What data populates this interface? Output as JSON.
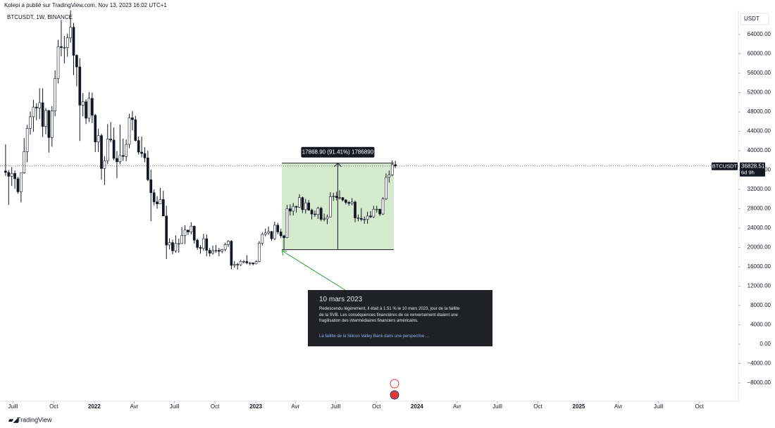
{
  "header": {
    "publisher": "Kolepi a publié sur TradingView.com, Nov 13, 2023 16:02 UTC+1"
  },
  "chart_data": {
    "type": "candlestick",
    "title": "BTCUSDT, 1W, BINANCE",
    "currency": "USDT",
    "up_color": "#ffffff",
    "down_color": "#131722",
    "outline_color": "#131722",
    "candles": [
      [
        35800,
        41300,
        34800,
        35500
      ],
      [
        35500,
        36000,
        28800,
        34700
      ],
      [
        34700,
        36600,
        32700,
        35300
      ],
      [
        35300,
        35900,
        32100,
        34200
      ],
      [
        34200,
        34600,
        31100,
        31500
      ],
      [
        31500,
        35400,
        29300,
        35400
      ],
      [
        35400,
        42600,
        35200,
        39800
      ],
      [
        39800,
        45300,
        37600,
        44600
      ],
      [
        44600,
        48100,
        43300,
        47000
      ],
      [
        47000,
        50500,
        43900,
        49000
      ],
      [
        49000,
        49800,
        46300,
        48800
      ],
      [
        48800,
        52900,
        46500,
        49900
      ],
      [
        49900,
        52900,
        42800,
        45000
      ],
      [
        45000,
        48800,
        43400,
        48300
      ],
      [
        48300,
        48400,
        39600,
        42700
      ],
      [
        42700,
        49200,
        40800,
        48200
      ],
      [
        48200,
        56600,
        47100,
        54900
      ],
      [
        54900,
        62900,
        53900,
        61500
      ],
      [
        61500,
        67000,
        59500,
        61300
      ],
      [
        61300,
        63700,
        58000,
        61300
      ],
      [
        61300,
        64200,
        59400,
        63300
      ],
      [
        63300,
        69000,
        62300,
        65500
      ],
      [
        65500,
        66400,
        55600,
        59700
      ],
      [
        59700,
        59900,
        53300,
        57300
      ],
      [
        57300,
        59100,
        42000,
        49400
      ],
      [
        49400,
        51900,
        47100,
        50100
      ],
      [
        50100,
        50600,
        45500,
        46700
      ],
      [
        46700,
        52100,
        45900,
        50800
      ],
      [
        50800,
        52000,
        45700,
        47300
      ],
      [
        47300,
        47600,
        39700,
        41800
      ],
      [
        41800,
        44500,
        39700,
        43100
      ],
      [
        43100,
        43500,
        34000,
        36300
      ],
      [
        36300,
        38900,
        32900,
        37900
      ],
      [
        37900,
        45500,
        37200,
        42400
      ],
      [
        42400,
        45900,
        41700,
        42200
      ],
      [
        42200,
        44800,
        38000,
        38400
      ],
      [
        38400,
        39900,
        34300,
        37700
      ],
      [
        37700,
        45400,
        37200,
        39000
      ],
      [
        39000,
        42500,
        37900,
        38800
      ],
      [
        38800,
        42300,
        37800,
        41300
      ],
      [
        41300,
        47600,
        40500,
        46800
      ],
      [
        46800,
        48200,
        44200,
        46400
      ],
      [
        46400,
        47200,
        41900,
        42100
      ],
      [
        42100,
        42900,
        39200,
        39700
      ],
      [
        39700,
        42900,
        38600,
        39400
      ],
      [
        39400,
        40700,
        37600,
        38500
      ],
      [
        38500,
        40000,
        33700,
        34000
      ],
      [
        34000,
        36100,
        25400,
        31300
      ],
      [
        31300,
        32000,
        28700,
        29400
      ],
      [
        29400,
        30600,
        28000,
        29000
      ],
      [
        29000,
        32300,
        29000,
        29900
      ],
      [
        29900,
        31700,
        26500,
        26500
      ],
      [
        26500,
        28600,
        17600,
        20500
      ],
      [
        20500,
        21900,
        19600,
        21000
      ],
      [
        21000,
        21600,
        18600,
        19300
      ],
      [
        19300,
        22500,
        18900,
        20800
      ],
      [
        20800,
        21800,
        18900,
        20800
      ],
      [
        20800,
        24200,
        20700,
        22500
      ],
      [
        22500,
        24600,
        20700,
        23600
      ],
      [
        23600,
        23600,
        22600,
        23200
      ],
      [
        23200,
        25200,
        22700,
        24400
      ],
      [
        24400,
        24500,
        20800,
        21500
      ],
      [
        21500,
        21800,
        19500,
        20000
      ],
      [
        20000,
        20500,
        18700,
        19800
      ],
      [
        19800,
        22800,
        19300,
        21800
      ],
      [
        21800,
        22700,
        18200,
        19400
      ],
      [
        19400,
        19900,
        18100,
        18800
      ],
      [
        18800,
        20400,
        18500,
        19300
      ],
      [
        19300,
        20500,
        18900,
        19400
      ],
      [
        19400,
        19900,
        18200,
        19200
      ],
      [
        19200,
        19700,
        18800,
        19600
      ],
      [
        19600,
        21000,
        19200,
        20600
      ],
      [
        20600,
        21500,
        20100,
        21300
      ],
      [
        21300,
        21500,
        15500,
        16300
      ],
      [
        16300,
        17200,
        15800,
        16500
      ],
      [
        16500,
        16800,
        15400,
        16400
      ],
      [
        16400,
        17400,
        16200,
        17100
      ],
      [
        17100,
        17400,
        16700,
        17100
      ],
      [
        17100,
        18400,
        16500,
        16800
      ],
      [
        16800,
        17000,
        16300,
        16800
      ],
      [
        16800,
        16900,
        16300,
        16600
      ],
      [
        16600,
        17300,
        16500,
        17100
      ],
      [
        17100,
        21300,
        17000,
        20900
      ],
      [
        20900,
        23100,
        20400,
        22700
      ],
      [
        22700,
        23900,
        22300,
        23000
      ],
      [
        23000,
        24300,
        22600,
        23300
      ],
      [
        23300,
        23400,
        21400,
        21800
      ],
      [
        21800,
        25300,
        21500,
        24600
      ],
      [
        24600,
        25100,
        22700,
        23200
      ],
      [
        23200,
        23900,
        21900,
        22400
      ],
      [
        22400,
        22600,
        19600,
        22000
      ],
      [
        22000,
        28800,
        21900,
        28000
      ],
      [
        28000,
        28900,
        26600,
        27500
      ],
      [
        27500,
        29200,
        26600,
        28500
      ],
      [
        28500,
        28600,
        27200,
        28300
      ],
      [
        28300,
        31000,
        28200,
        30300
      ],
      [
        30300,
        30500,
        27100,
        27800
      ],
      [
        27800,
        30000,
        27000,
        29200
      ],
      [
        29200,
        29800,
        27600,
        27700
      ],
      [
        27700,
        28000,
        25800,
        26900
      ],
      [
        26900,
        27600,
        26300,
        26800
      ],
      [
        26800,
        28400,
        25900,
        28100
      ],
      [
        28100,
        28400,
        25400,
        25800
      ],
      [
        25800,
        27000,
        25400,
        25900
      ],
      [
        25900,
        26800,
        24800,
        26300
      ],
      [
        26300,
        31400,
        26200,
        30500
      ],
      [
        30500,
        31300,
        29600,
        30600
      ],
      [
        30600,
        31500,
        29700,
        30300
      ],
      [
        30300,
        31800,
        29900,
        30300
      ],
      [
        30300,
        30400,
        29500,
        29800
      ],
      [
        29800,
        30000,
        28900,
        29300
      ],
      [
        29300,
        29600,
        28600,
        29100
      ],
      [
        29100,
        30200,
        28700,
        29400
      ],
      [
        29400,
        29700,
        25200,
        26100
      ],
      [
        26100,
        26800,
        25400,
        26000
      ],
      [
        26000,
        28100,
        25400,
        25800
      ],
      [
        25800,
        26400,
        24900,
        25800
      ],
      [
        25800,
        27400,
        24900,
        26500
      ],
      [
        26500,
        27500,
        26100,
        26300
      ],
      [
        26300,
        28600,
        26100,
        27900
      ],
      [
        27900,
        28600,
        27200,
        27900
      ],
      [
        27900,
        28000,
        26500,
        26900
      ],
      [
        26900,
        30400,
        26700,
        30000
      ],
      [
        30000,
        35300,
        29800,
        34500
      ],
      [
        34500,
        35900,
        33400,
        35000
      ],
      [
        35000,
        38000,
        34700,
        37100
      ],
      [
        37100,
        37900,
        36400,
        36828.51
      ]
    ],
    "xlim": [
      -1.8,
      236.9
    ],
    "xticks": [
      {
        "value": 2.4,
        "label": "Juill"
      },
      {
        "value": 15.6,
        "label": "Oct"
      },
      {
        "value": 28.7,
        "label": "2022"
      },
      {
        "value": 41.6,
        "label": "Avr"
      },
      {
        "value": 54.6,
        "label": "Juill"
      },
      {
        "value": 67.7,
        "label": "Oct"
      },
      {
        "value": 80.9,
        "label": "2023"
      },
      {
        "value": 93.7,
        "label": "Avr"
      },
      {
        "value": 106.7,
        "label": "Juill"
      },
      {
        "value": 119.9,
        "label": "Oct"
      },
      {
        "value": 133.0,
        "label": "2024"
      },
      {
        "value": 146.0,
        "label": "Avr"
      },
      {
        "value": 159.0,
        "label": "Juill"
      },
      {
        "value": 172.1,
        "label": "Oct"
      },
      {
        "value": 185.3,
        "label": "2025"
      },
      {
        "value": 198.1,
        "label": "Avr"
      },
      {
        "value": 211.1,
        "label": "Juill"
      },
      {
        "value": 224.3,
        "label": "Oct"
      }
    ],
    "ylim": [
      -11782,
      68945
    ],
    "yticks": [
      {
        "value": 64000,
        "label": "64000.00"
      },
      {
        "value": 60000,
        "label": "60000.00"
      },
      {
        "value": 56000,
        "label": "56000.00"
      },
      {
        "value": 52000,
        "label": "52000.00"
      },
      {
        "value": 48000,
        "label": "48000.00"
      },
      {
        "value": 44000,
        "label": "44000.00"
      },
      {
        "value": 40000,
        "label": "40000.00"
      },
      {
        "value": 36000,
        "label": "36000.00"
      },
      {
        "value": 32000,
        "label": "32000.00"
      },
      {
        "value": 28000,
        "label": "28000.00"
      },
      {
        "value": 24000,
        "label": "24000.00"
      },
      {
        "value": 20000,
        "label": "20000.00"
      },
      {
        "value": 16000,
        "label": "16000.00"
      },
      {
        "value": 12000,
        "label": "12000.00"
      },
      {
        "value": 8000,
        "label": "8000.00"
      },
      {
        "value": 4000,
        "label": "4000.00"
      },
      {
        "value": 0,
        "label": "0.00"
      },
      {
        "value": -4000,
        "label": "−4000.00"
      },
      {
        "value": -8000,
        "label": "−8000.00"
      }
    ],
    "price_tag": {
      "symbol": "BTCUSDT",
      "countdown": "6d 9h"
    },
    "measure": {
      "label": "17868.90 (91.41%) 1786890",
      "low": 19550,
      "high": 37420,
      "x_start": 89.3,
      "x_end": 125.5,
      "color": "#d4ebcf"
    }
  },
  "inset": {
    "title": "10 mars 2023",
    "text": "Redescendu légèrement, il était à 1.51 % le 10 mars 2023, jour de la faillite de la SVB. Les conséquences financières de ce renversement étaient une fragilisation des intermédiaires financiers américains.",
    "link": "La faillite de la Silicon Valley Bank dans une perspective ..."
  },
  "footer": {
    "brand": "TradingView"
  }
}
